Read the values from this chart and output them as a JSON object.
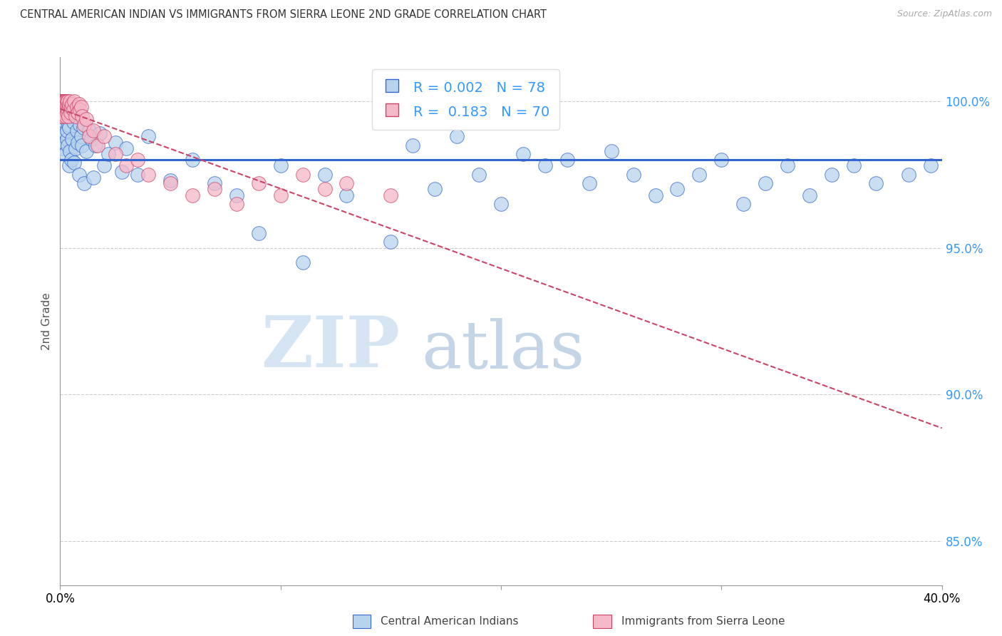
{
  "title": "CENTRAL AMERICAN INDIAN VS IMMIGRANTS FROM SIERRA LEONE 2ND GRADE CORRELATION CHART",
  "source": "Source: ZipAtlas.com",
  "ylabel": "2nd Grade",
  "xlim": [
    0.0,
    40.0
  ],
  "ylim": [
    83.5,
    101.5
  ],
  "blue_r": 0.002,
  "blue_n": 78,
  "pink_r": 0.183,
  "pink_n": 70,
  "blue_color": "#b8d4ed",
  "pink_color": "#f5b8c8",
  "blue_line_color": "#3366cc",
  "pink_line_color": "#cc4466",
  "watermark_zip": "ZIP",
  "watermark_atlas": "atlas",
  "legend_label_blue": "Central American Indians",
  "legend_label_pink": "Immigrants from Sierra Leone",
  "blue_x": [
    0.05,
    0.08,
    0.1,
    0.12,
    0.15,
    0.18,
    0.2,
    0.22,
    0.25,
    0.28,
    0.3,
    0.32,
    0.35,
    0.38,
    0.4,
    0.42,
    0.45,
    0.48,
    0.5,
    0.55,
    0.6,
    0.65,
    0.7,
    0.75,
    0.8,
    0.85,
    0.9,
    0.95,
    1.0,
    1.05,
    1.1,
    1.2,
    1.3,
    1.4,
    1.5,
    1.6,
    1.8,
    2.0,
    2.2,
    2.5,
    2.8,
    3.0,
    3.5,
    4.0,
    5.0,
    6.0,
    7.0,
    8.0,
    9.0,
    10.0,
    11.0,
    12.0,
    13.0,
    15.0,
    16.0,
    17.0,
    18.0,
    19.0,
    20.0,
    21.0,
    22.0,
    23.0,
    24.0,
    25.0,
    26.0,
    27.0,
    28.0,
    29.0,
    30.0,
    31.0,
    32.0,
    33.0,
    34.0,
    35.0,
    36.0,
    37.0,
    38.5,
    39.5
  ],
  "blue_y": [
    99.2,
    98.8,
    99.5,
    98.4,
    99.1,
    98.6,
    99.3,
    98.2,
    98.9,
    99.4,
    98.7,
    99.0,
    98.5,
    99.2,
    97.8,
    99.1,
    98.3,
    99.5,
    98.0,
    98.7,
    99.3,
    97.9,
    98.4,
    99.0,
    98.6,
    97.5,
    99.2,
    98.8,
    98.5,
    99.1,
    97.2,
    98.3,
    99.0,
    98.7,
    97.4,
    98.5,
    98.9,
    97.8,
    98.2,
    98.6,
    97.6,
    98.4,
    97.5,
    98.8,
    97.3,
    98.0,
    97.2,
    96.8,
    95.5,
    97.8,
    94.5,
    97.5,
    96.8,
    95.2,
    98.5,
    97.0,
    98.8,
    97.5,
    96.5,
    98.2,
    97.8,
    98.0,
    97.2,
    98.3,
    97.5,
    96.8,
    97.0,
    97.5,
    98.0,
    96.5,
    97.2,
    97.8,
    96.8,
    97.5,
    97.8,
    97.2,
    97.5,
    97.8
  ],
  "pink_x": [
    0.02,
    0.03,
    0.04,
    0.05,
    0.06,
    0.07,
    0.08,
    0.09,
    0.1,
    0.1,
    0.11,
    0.12,
    0.13,
    0.14,
    0.15,
    0.15,
    0.16,
    0.17,
    0.18,
    0.19,
    0.2,
    0.2,
    0.22,
    0.23,
    0.24,
    0.25,
    0.25,
    0.26,
    0.28,
    0.3,
    0.3,
    0.32,
    0.35,
    0.35,
    0.38,
    0.4,
    0.42,
    0.45,
    0.48,
    0.5,
    0.55,
    0.6,
    0.65,
    0.7,
    0.75,
    0.8,
    0.85,
    0.9,
    0.95,
    1.0,
    1.1,
    1.2,
    1.3,
    1.5,
    1.7,
    2.0,
    2.5,
    3.0,
    3.5,
    4.0,
    5.0,
    6.0,
    7.0,
    8.0,
    9.0,
    10.0,
    11.0,
    12.0,
    13.0,
    15.0
  ],
  "pink_y": [
    99.5,
    99.8,
    100.0,
    99.6,
    99.9,
    100.0,
    99.7,
    100.0,
    99.8,
    100.0,
    99.5,
    100.0,
    99.8,
    99.6,
    100.0,
    99.9,
    99.7,
    100.0,
    99.8,
    100.0,
    99.6,
    100.0,
    99.9,
    99.7,
    100.0,
    99.8,
    99.5,
    100.0,
    99.9,
    99.6,
    100.0,
    99.8,
    99.7,
    100.0,
    99.5,
    99.8,
    99.9,
    100.0,
    99.6,
    99.8,
    99.9,
    99.7,
    100.0,
    99.5,
    99.8,
    99.6,
    99.9,
    99.7,
    99.8,
    99.5,
    99.2,
    99.4,
    98.8,
    99.0,
    98.5,
    98.8,
    98.2,
    97.8,
    98.0,
    97.5,
    97.2,
    96.8,
    97.0,
    96.5,
    97.2,
    96.8,
    97.5,
    97.0,
    97.2,
    96.8
  ],
  "y_ticks": [
    85.0,
    90.0,
    95.0,
    100.0
  ]
}
